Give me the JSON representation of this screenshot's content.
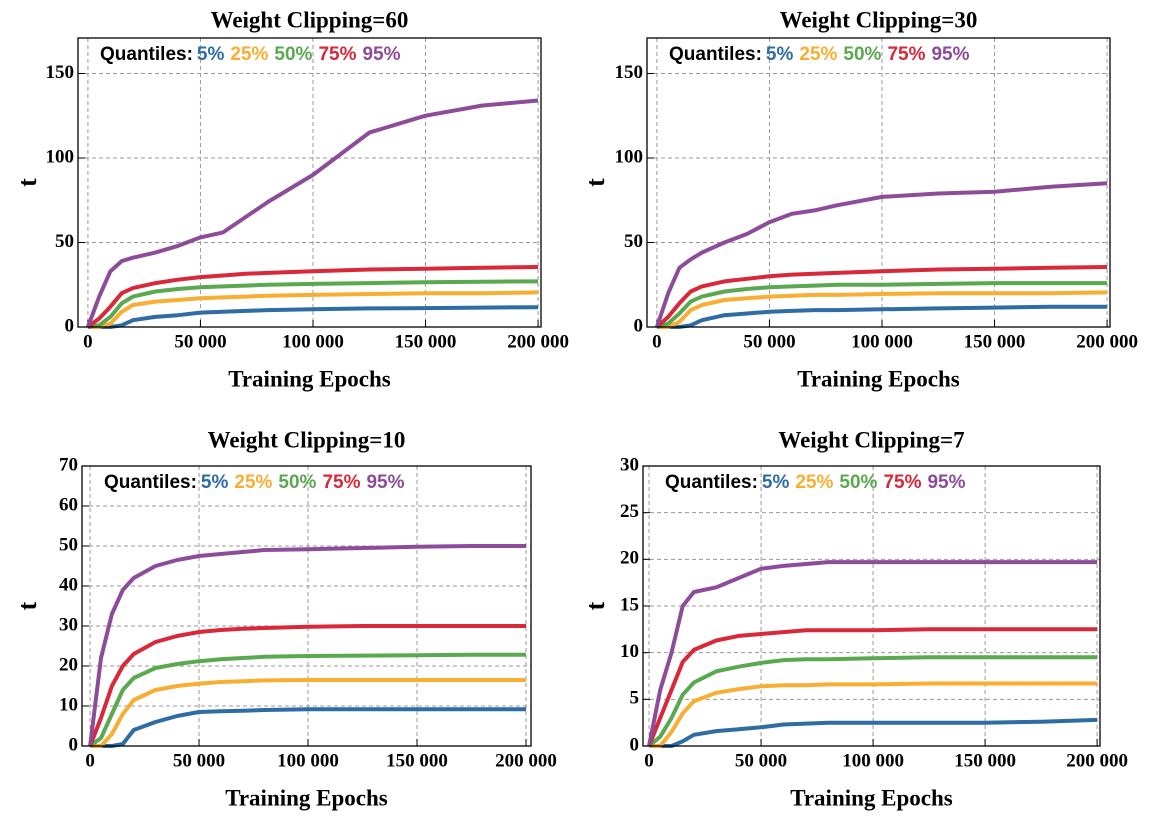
{
  "chart_data": [
    {
      "type": "line",
      "title": "Weight Clipping=60",
      "xlabel": "Training Epochs",
      "ylabel": "t",
      "legend_title": "Quantiles:",
      "legend": "upper left",
      "grid": true,
      "x": [
        0,
        5000,
        10000,
        15000,
        20000,
        30000,
        40000,
        50000,
        60000,
        70000,
        80000,
        100000,
        125000,
        150000,
        175000,
        200000
      ],
      "xlim": [
        -4400,
        201300
      ],
      "xticks": [
        0,
        {
          "value": 50000,
          "label": "50 000"
        },
        {
          "value": 100000,
          "label": "100 000"
        },
        {
          "value": 150000,
          "label": "150 000"
        },
        {
          "value": 200000,
          "label": "200 000"
        }
      ],
      "ylim": [
        0,
        171
      ],
      "yticks": [
        0,
        50,
        100,
        150
      ],
      "series": [
        {
          "name": "5%",
          "color": "#2f6ca3",
          "values": [
            0,
            0,
            0,
            1,
            4,
            6,
            7,
            8.5,
            9,
            9.5,
            10,
            10.5,
            11,
            11.2,
            11.5,
            11.7
          ]
        },
        {
          "name": "25%",
          "color": "#f7ae33",
          "values": [
            0,
            0,
            2,
            9,
            13,
            15,
            16,
            17,
            17.5,
            18,
            18.5,
            19,
            19.5,
            20,
            20,
            20.5
          ]
        },
        {
          "name": "50%",
          "color": "#5aa84f",
          "values": [
            0,
            1,
            6,
            14,
            18,
            21,
            22.5,
            23.5,
            24,
            24.5,
            25,
            25.5,
            26,
            26.5,
            26.8,
            27
          ]
        },
        {
          "name": "75%",
          "color": "#d8283a",
          "values": [
            0,
            5,
            12,
            20,
            23,
            26,
            28,
            29.5,
            30.5,
            31.5,
            32,
            33,
            34,
            34.5,
            35,
            35.5
          ]
        },
        {
          "name": "95%",
          "color": "#8d4c9a",
          "values": [
            0,
            18,
            33,
            39,
            41,
            44,
            48,
            53,
            56,
            65,
            74,
            90,
            115,
            125,
            131,
            134
          ]
        }
      ]
    },
    {
      "type": "line",
      "title": "Weight Clipping=30",
      "xlabel": "Training Epochs",
      "ylabel": "t",
      "legend_title": "Quantiles:",
      "legend": "upper left",
      "grid": true,
      "x": [
        0,
        5000,
        10000,
        15000,
        20000,
        30000,
        40000,
        50000,
        60000,
        70000,
        80000,
        100000,
        125000,
        150000,
        175000,
        200000
      ],
      "xlim": [
        -4400,
        201300
      ],
      "xticks": [
        0,
        {
          "value": 50000,
          "label": "50 000"
        },
        {
          "value": 100000,
          "label": "100 000"
        },
        {
          "value": 150000,
          "label": "150 000"
        },
        {
          "value": 200000,
          "label": "200 000"
        }
      ],
      "ylim": [
        0,
        171
      ],
      "yticks": [
        0,
        50,
        100,
        150
      ],
      "series": [
        {
          "name": "5%",
          "color": "#2f6ca3",
          "values": [
            0,
            0,
            0,
            1,
            4,
            7,
            8,
            9,
            9.5,
            10,
            10,
            10.5,
            11,
            11.5,
            12,
            12
          ]
        },
        {
          "name": "25%",
          "color": "#f7ae33",
          "values": [
            0,
            0,
            3,
            10,
            13,
            16,
            17,
            18,
            18.5,
            19,
            19,
            19.5,
            20,
            20,
            20,
            20.5
          ]
        },
        {
          "name": "50%",
          "color": "#5aa84f",
          "values": [
            0,
            2,
            8,
            15,
            18,
            21,
            22.5,
            23.5,
            24,
            24.5,
            25,
            25,
            25.5,
            26,
            26,
            26
          ]
        },
        {
          "name": "75%",
          "color": "#d8283a",
          "values": [
            0,
            6,
            14,
            21,
            24,
            27,
            28.5,
            30,
            31,
            31.5,
            32,
            33,
            34,
            34.5,
            35,
            35.5
          ]
        },
        {
          "name": "95%",
          "color": "#8d4c9a",
          "values": [
            0,
            20,
            35,
            40,
            44,
            50,
            55,
            62,
            67,
            69,
            72,
            77,
            79,
            80,
            83,
            85
          ]
        }
      ]
    },
    {
      "type": "line",
      "title": "Weight Clipping=10",
      "xlabel": "Training Epochs",
      "ylabel": "t",
      "legend_title": "Quantiles:",
      "legend": "upper left",
      "grid": true,
      "x": [
        0,
        5000,
        10000,
        15000,
        20000,
        30000,
        40000,
        50000,
        60000,
        70000,
        80000,
        100000,
        125000,
        150000,
        175000,
        200000
      ],
      "xlim": [
        -3700,
        202300
      ],
      "xticks": [
        0,
        {
          "value": 50000,
          "label": "50 000"
        },
        {
          "value": 100000,
          "label": "100 000"
        },
        {
          "value": 150000,
          "label": "150 000"
        },
        {
          "value": 200000,
          "label": "200 000"
        }
      ],
      "ylim": [
        0,
        70
      ],
      "yticks": [
        0,
        10,
        20,
        30,
        40,
        50,
        60,
        70
      ],
      "series": [
        {
          "name": "5%",
          "color": "#2f6ca3",
          "values": [
            0,
            0,
            0,
            0.5,
            4,
            6,
            7.5,
            8.5,
            8.7,
            8.8,
            9,
            9.2,
            9.2,
            9.2,
            9.2,
            9.2
          ]
        },
        {
          "name": "25%",
          "color": "#f7ae33",
          "values": [
            0,
            0,
            3,
            8,
            11.5,
            14,
            15,
            15.6,
            16,
            16.2,
            16.4,
            16.5,
            16.5,
            16.5,
            16.5,
            16.5
          ]
        },
        {
          "name": "50%",
          "color": "#5aa84f",
          "values": [
            0,
            2,
            8,
            14,
            17,
            19.5,
            20.5,
            21.2,
            21.7,
            22,
            22.3,
            22.5,
            22.6,
            22.7,
            22.8,
            22.8
          ]
        },
        {
          "name": "75%",
          "color": "#d8283a",
          "values": [
            0,
            7,
            15,
            20,
            23,
            26,
            27.5,
            28.5,
            29,
            29.3,
            29.5,
            29.8,
            30,
            30,
            30,
            30
          ]
        },
        {
          "name": "95%",
          "color": "#8d4c9a",
          "values": [
            0,
            22,
            33,
            39,
            42,
            45,
            46.5,
            47.5,
            48,
            48.5,
            49,
            49.2,
            49.5,
            49.8,
            50,
            50
          ]
        }
      ]
    },
    {
      "type": "line",
      "title": "Weight Clipping=7",
      "xlabel": "Training Epochs",
      "ylabel": "t",
      "legend_title": "Quantiles:",
      "legend": "upper left",
      "grid": true,
      "x": [
        0,
        5000,
        10000,
        15000,
        20000,
        30000,
        40000,
        50000,
        60000,
        70000,
        80000,
        100000,
        125000,
        150000,
        175000,
        200000
      ],
      "xlim": [
        -2700,
        201300
      ],
      "xticks": [
        0,
        {
          "value": 50000,
          "label": "50 000"
        },
        {
          "value": 100000,
          "label": "100 000"
        },
        {
          "value": 150000,
          "label": "150 000"
        },
        {
          "value": 200000,
          "label": "200 000"
        }
      ],
      "ylim": [
        0,
        30
      ],
      "yticks": [
        0,
        5,
        10,
        15,
        20,
        25,
        30
      ],
      "series": [
        {
          "name": "5%",
          "color": "#2f6ca3",
          "values": [
            0,
            0,
            0,
            0.5,
            1.2,
            1.6,
            1.8,
            2,
            2.3,
            2.4,
            2.5,
            2.5,
            2.5,
            2.5,
            2.6,
            2.8
          ]
        },
        {
          "name": "25%",
          "color": "#f7ae33",
          "values": [
            0,
            0,
            1.5,
            3.5,
            4.8,
            5.7,
            6.1,
            6.4,
            6.5,
            6.5,
            6.6,
            6.6,
            6.7,
            6.7,
            6.7,
            6.7
          ]
        },
        {
          "name": "50%",
          "color": "#5aa84f",
          "values": [
            0,
            1,
            3,
            5.5,
            6.8,
            8,
            8.5,
            8.9,
            9.2,
            9.3,
            9.3,
            9.4,
            9.5,
            9.5,
            9.5,
            9.5
          ]
        },
        {
          "name": "75%",
          "color": "#d8283a",
          "values": [
            0,
            3,
            6,
            9,
            10.3,
            11.3,
            11.8,
            12,
            12.2,
            12.4,
            12.4,
            12.4,
            12.5,
            12.5,
            12.5,
            12.5
          ]
        },
        {
          "name": "95%",
          "color": "#8d4c9a",
          "values": [
            0,
            6,
            10,
            15,
            16.5,
            17,
            18,
            19,
            19.3,
            19.5,
            19.7,
            19.7,
            19.7,
            19.7,
            19.7,
            19.7
          ]
        }
      ]
    }
  ]
}
